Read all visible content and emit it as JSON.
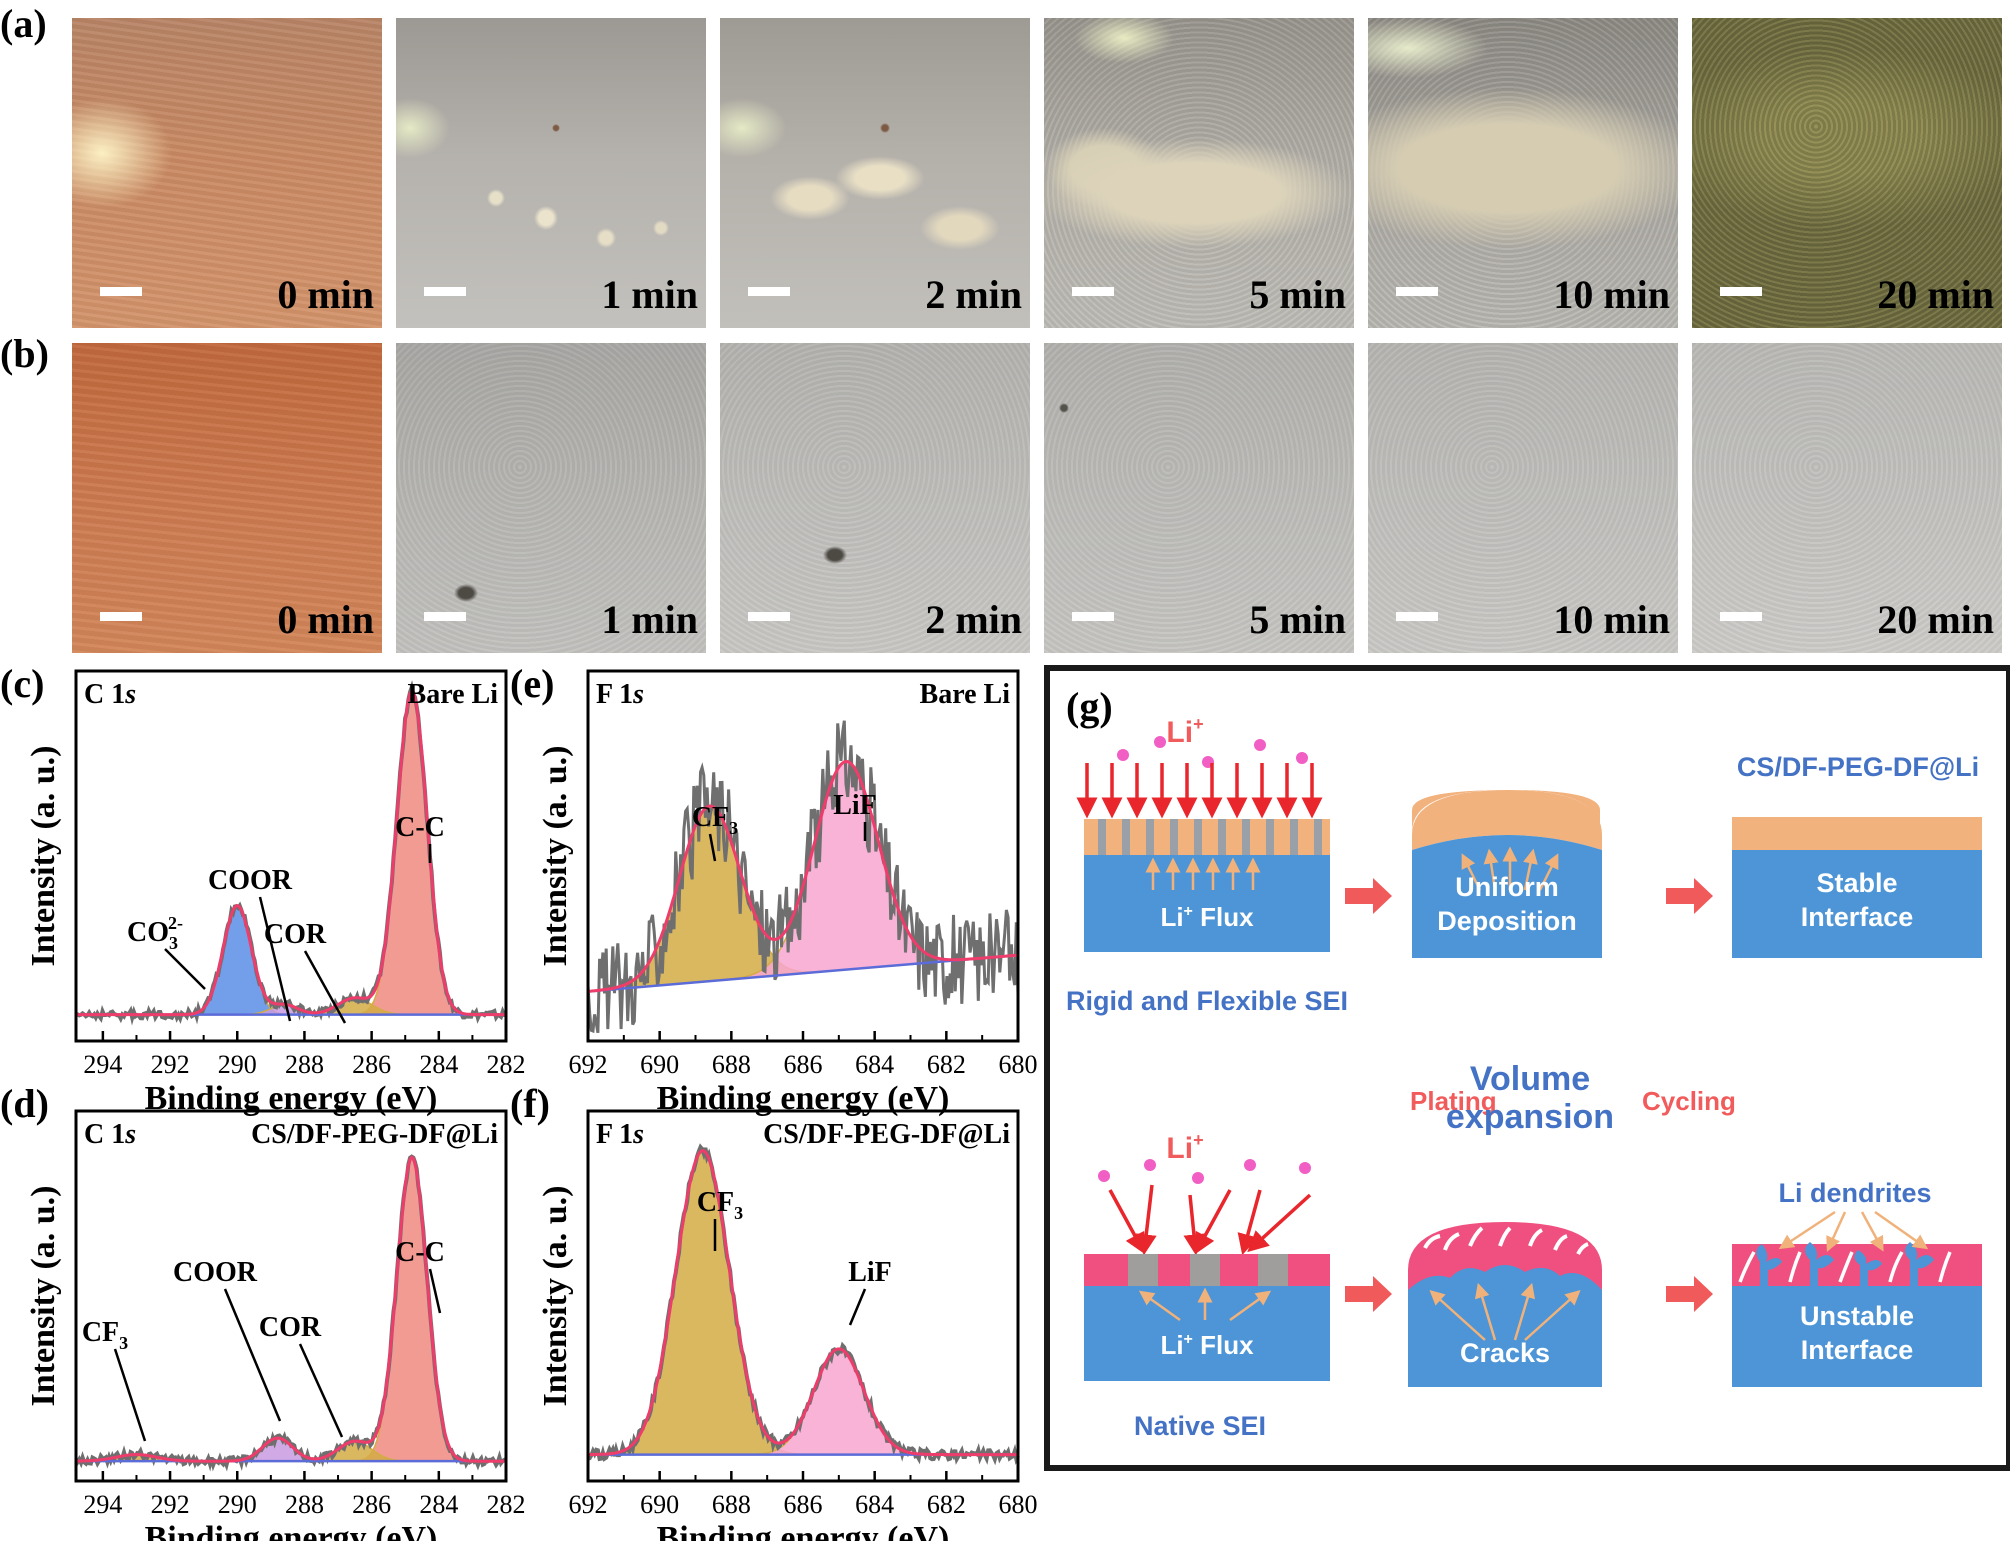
{
  "figure": {
    "panel_labels": {
      "a": "(a)",
      "b": "(b)",
      "c": "(c)",
      "d": "(d)",
      "e": "(e)",
      "f": "(f)",
      "g": "(g)"
    },
    "time_labels": [
      "0 min",
      "1 min",
      "2 min",
      "5 min",
      "10 min",
      "20 min"
    ],
    "colors": {
      "copper": "#c97a55",
      "grey_surface": "#b6b5b2",
      "dendrite": "#ddd6c0",
      "data_grey": "#6f6f6f",
      "envelope": "#ee3d6b",
      "baseline": "#5b6cd9",
      "gold": "#d4ac44",
      "salmon": "#f08a80",
      "blue_fill": "#5b8ee6",
      "pink_fill": "#f7a6d0",
      "purple_fill": "#c89ae0",
      "sei_orange": "#f2b27e",
      "li_blue": "#4d95d6",
      "native_pink": "#f0507f",
      "arrow_red": "#e8262c",
      "ion_pink": "#f15ec4",
      "text_blue": "#4472c4",
      "text_red": "#f25b5b"
    }
  },
  "chart_data": [
    {
      "id": "c",
      "type": "line",
      "element": "C 1s",
      "sample": "Bare Li",
      "xlabel": "Binding energy (eV)",
      "ylabel": "Intensity (a. u.)",
      "xlim": [
        294.8,
        282
      ],
      "ylim": [
        0,
        1.12
      ],
      "xticks": [
        "294",
        "292",
        "290",
        "288",
        "286",
        "284",
        "282"
      ],
      "baseline": 0.08,
      "peaks": [
        {
          "name": "C-C",
          "label": "C-C",
          "center": 284.8,
          "height": 0.98,
          "sigma": 0.45,
          "color": "salmon"
        },
        {
          "name": "CO3",
          "label": "CO",
          "sub": "3",
          "sup": "2-",
          "center": 290.0,
          "height": 0.33,
          "sigma": 0.42,
          "color": "blue_fill"
        },
        {
          "name": "COOR",
          "label": "COOR",
          "center": 288.6,
          "height": 0.03,
          "sigma": 0.4,
          "color": "purple_fill"
        },
        {
          "name": "COR",
          "label": "COR",
          "center": 286.5,
          "height": 0.05,
          "sigma": 0.5,
          "color": "gold"
        }
      ]
    },
    {
      "id": "d",
      "type": "line",
      "element": "C 1s",
      "sample": "CS/DF-PEG-DF@Li",
      "xlabel": "Binding energy (eV)",
      "ylabel": "Intensity (a. u.)",
      "xlim": [
        294.8,
        282
      ],
      "ylim": [
        0,
        1.12
      ],
      "xticks": [
        "294",
        "292",
        "290",
        "288",
        "286",
        "284",
        "282"
      ],
      "baseline": 0.06,
      "peaks": [
        {
          "name": "C-C",
          "label": "C-C",
          "center": 284.8,
          "height": 0.92,
          "sigma": 0.45,
          "color": "salmon"
        },
        {
          "name": "COOR",
          "label": "COOR",
          "center": 288.8,
          "height": 0.07,
          "sigma": 0.45,
          "color": "purple_fill"
        },
        {
          "name": "COR",
          "label": "COR",
          "center": 286.5,
          "height": 0.06,
          "sigma": 0.5,
          "color": "gold"
        },
        {
          "name": "CF3",
          "label": "CF",
          "sub": "3",
          "center": 293.0,
          "height": 0.02,
          "sigma": 0.6,
          "color": "gold"
        }
      ]
    },
    {
      "id": "e",
      "type": "line",
      "element": "F 1s",
      "sample": "Bare Li",
      "xlabel": "Binding energy (eV)",
      "ylabel": "Intensity (a. u.)",
      "xlim": [
        692,
        680
      ],
      "ylim": [
        0,
        1.12
      ],
      "xticks": [
        "692",
        "690",
        "688",
        "686",
        "684",
        "682",
        "680"
      ],
      "baseline_start": 0.15,
      "baseline_end": 0.26,
      "noise": 0.14,
      "peaks": [
        {
          "name": "CF3",
          "label": "CF",
          "sub": "3",
          "center": 688.6,
          "height": 0.53,
          "sigma": 0.85,
          "color": "gold"
        },
        {
          "name": "LiF",
          "label": "LiF",
          "center": 684.8,
          "height": 0.63,
          "sigma": 0.9,
          "color": "pink_fill"
        }
      ]
    },
    {
      "id": "f",
      "type": "line",
      "element": "F 1s",
      "sample": "CS/DF-PEG-DF@Li",
      "xlabel": "Binding energy (eV)",
      "ylabel": "Intensity (a. u.)",
      "xlim": [
        692,
        680
      ],
      "ylim": [
        0,
        1.12
      ],
      "xticks": [
        "692",
        "690",
        "688",
        "686",
        "684",
        "682",
        "680"
      ],
      "baseline_start": 0.08,
      "baseline_end": 0.08,
      "noise": 0.015,
      "peaks": [
        {
          "name": "CF3",
          "label": "CF",
          "sub": "3",
          "center": 688.8,
          "height": 0.92,
          "sigma": 0.75,
          "color": "gold"
        },
        {
          "name": "LiF",
          "label": "LiF",
          "center": 685.0,
          "height": 0.32,
          "sigma": 0.7,
          "color": "pink_fill"
        }
      ]
    }
  ],
  "schematic": {
    "li_ion": "Li",
    "li_ion_sup": "+",
    "sample_label": "CS/DF-PEG-DF@Li",
    "flux": "Li",
    "flux_sup": "+",
    "flux_word": " Flux",
    "uniform_1": "Uniform",
    "uniform_2": "Deposition",
    "stable_1": "Stable",
    "stable_2": "Interface",
    "rigid_sei": "Rigid and Flexible SEI",
    "plating": "Plating",
    "volume_1": "Volume",
    "volume_2": "expansion",
    "cycling": "Cycling",
    "dendrites": "Li dendrites",
    "cracks": "Cracks",
    "unstable_1": "Unstable",
    "unstable_2": "Interface",
    "native_sei": "Native SEI"
  }
}
